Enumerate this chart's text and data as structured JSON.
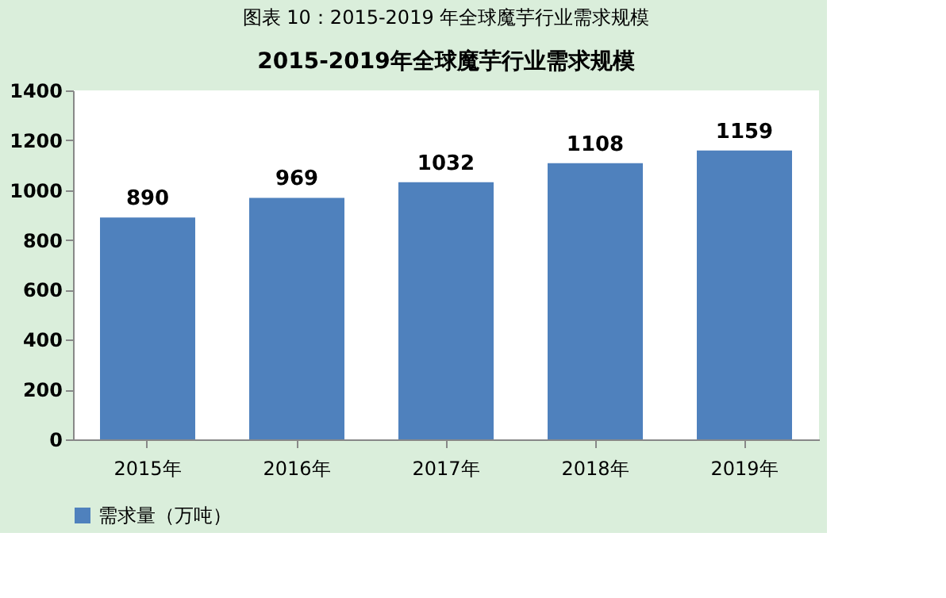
{
  "chart_data": {
    "type": "bar",
    "title": "图表 10：2015-2019 年全球魔芋行业需求规模",
    "subtitle": "2015-2019年全球魔芋行业需求规模",
    "categories": [
      "2015年",
      "2016年",
      "2017年",
      "2018年",
      "2019年"
    ],
    "series": [
      {
        "name": "需求量（万吨）",
        "color": "#4f81bd",
        "values": [
          890,
          969,
          1032,
          1108,
          1159
        ]
      }
    ],
    "ylim": [
      0,
      1400
    ],
    "yticks": [
      0,
      200,
      400,
      600,
      800,
      1000,
      1200,
      1400
    ],
    "grid": false,
    "legend": "bottom",
    "data_labels": true
  }
}
